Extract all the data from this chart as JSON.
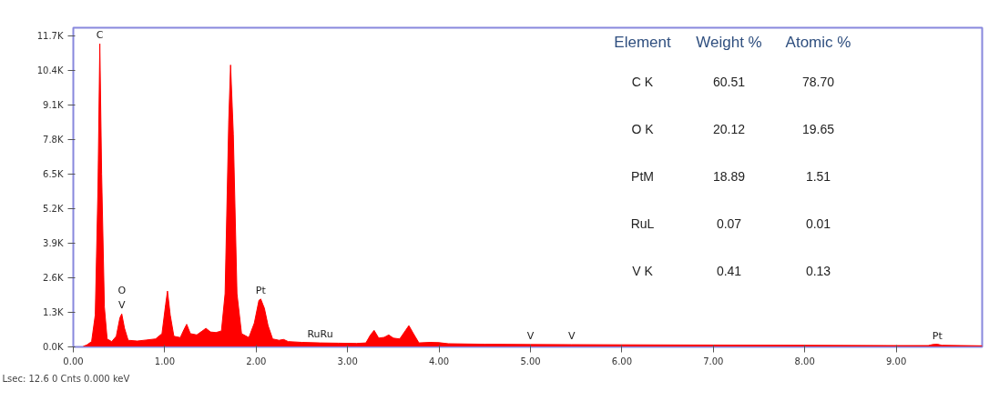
{
  "chart_data": [
    {
      "type": "area",
      "x": [
        0.1,
        0.15,
        0.2,
        0.24,
        0.27,
        0.29,
        0.31,
        0.34,
        0.37,
        0.42,
        0.47,
        0.51,
        0.53,
        0.56,
        0.6,
        0.7,
        0.8,
        0.9,
        0.97,
        1.01,
        1.03,
        1.06,
        1.1,
        1.17,
        1.21,
        1.24,
        1.28,
        1.35,
        1.42,
        1.45,
        1.5,
        1.56,
        1.62,
        1.66,
        1.7,
        1.72,
        1.75,
        1.79,
        1.84,
        1.92,
        1.98,
        2.03,
        2.05,
        2.09,
        2.13,
        2.18,
        2.25,
        2.3,
        2.35,
        2.5,
        2.7,
        2.9,
        3.1,
        3.2,
        3.25,
        3.29,
        3.34,
        3.4,
        3.45,
        3.5,
        3.57,
        3.63,
        3.67,
        3.72,
        3.78,
        3.9,
        4.0,
        4.1,
        4.5,
        5.0,
        5.45,
        6.0,
        7.0,
        8.0,
        9.0,
        9.35,
        9.4,
        9.45,
        9.5,
        9.94
      ],
      "series": [
        {
          "color": "#ff0000",
          "values": [
            0,
            80,
            200,
            1200,
            6000,
            11400,
            6500,
            1500,
            300,
            200,
            400,
            1100,
            1240,
            700,
            250,
            220,
            260,
            300,
            500,
            1600,
            2100,
            1200,
            400,
            350,
            650,
            850,
            500,
            450,
            620,
            700,
            560,
            540,
            600,
            2000,
            8500,
            10600,
            8000,
            2000,
            500,
            350,
            900,
            1750,
            1800,
            1450,
            800,
            300,
            250,
            280,
            200,
            170,
            150,
            140,
            130,
            150,
            450,
            620,
            330,
            360,
            450,
            330,
            300,
            600,
            800,
            500,
            150,
            170,
            160,
            120,
            100,
            90,
            85,
            80,
            70,
            60,
            50,
            50,
            90,
            100,
            60,
            40
          ]
        }
      ],
      "xlim": [
        0,
        9.94
      ],
      "ylim": [
        0,
        12000
      ],
      "xticks": [
        {
          "value": 0,
          "label": "0.00"
        },
        {
          "value": 1,
          "label": "1.00"
        },
        {
          "value": 2,
          "label": "2.00"
        },
        {
          "value": 3,
          "label": "3.00"
        },
        {
          "value": 4,
          "label": "4.00"
        },
        {
          "value": 5,
          "label": "5.00"
        },
        {
          "value": 6,
          "label": "6.00"
        },
        {
          "value": 7,
          "label": "7.00"
        },
        {
          "value": 8,
          "label": "8.00"
        },
        {
          "value": 9,
          "label": "9.00"
        }
      ],
      "yticks": [
        {
          "value": 0,
          "label": "0.0K"
        },
        {
          "value": 1300,
          "label": "1.3K"
        },
        {
          "value": 2600,
          "label": "2.6K"
        },
        {
          "value": 3900,
          "label": "3.9K"
        },
        {
          "value": 5200,
          "label": "5.2K"
        },
        {
          "value": 6500,
          "label": "6.5K"
        },
        {
          "value": 7800,
          "label": "7.8K"
        },
        {
          "value": 9100,
          "label": "9.1K"
        },
        {
          "value": 10400,
          "label": "10.4K"
        },
        {
          "value": 11700,
          "label": "11.7K"
        }
      ],
      "grid": false,
      "annotations": [
        {
          "text": "C",
          "x": 0.29,
          "y": 11400
        },
        {
          "text": "V",
          "x": 0.53,
          "y": 1240
        },
        {
          "text": "O",
          "x": 0.53,
          "y": 1240
        },
        {
          "text": "Pt",
          "x": 2.05,
          "y": 1800
        },
        {
          "text": "RuRu",
          "x": 2.7,
          "y": 150
        },
        {
          "text": "V",
          "x": 5.0,
          "y": 90
        },
        {
          "text": "V",
          "x": 5.45,
          "y": 85
        },
        {
          "text": "Pt",
          "x": 9.45,
          "y": 100
        },
        "Lsec: 12.6 0 Cnts  0.000 keV"
      ]
    },
    {
      "type": "other",
      "categories": [
        "Element",
        "Weight %",
        "Atomic %"
      ],
      "y_categories": [
        "C K",
        "O K",
        "PtM",
        "RuL",
        "V K"
      ],
      "cell_labels": [
        [
          "60.51",
          "78.70"
        ],
        [
          "20.12",
          "19.65"
        ],
        [
          "18.89",
          "1.51"
        ],
        [
          "0.07",
          "0.01"
        ],
        [
          "0.41",
          "0.13"
        ]
      ]
    }
  ]
}
